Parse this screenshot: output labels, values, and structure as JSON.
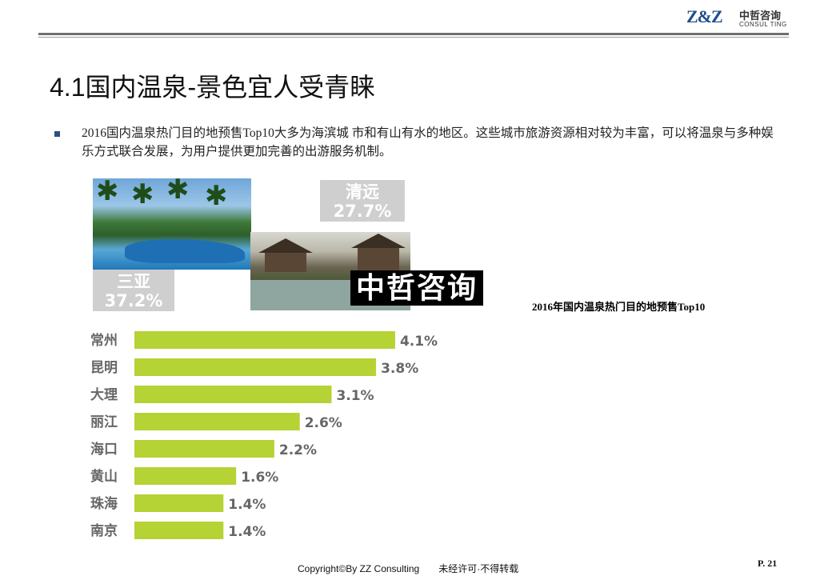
{
  "header": {
    "logo_mark": "Z&Z",
    "logo_cn": "中哲咨询",
    "logo_en": "CONSUL TING"
  },
  "slide": {
    "title": "4.1国内温泉-景色宜人受青睐",
    "bullet": "2016国内温泉热门目的地预售Top10大多为海滨城 市和有山有水的地区。这些城市旅游资源相对较为丰富，可以将温泉与多种娱乐方式联合发展，为用户提供更加完善的出游服务机制。"
  },
  "highlights": {
    "qingyuan": {
      "name": "清远",
      "percent": "27.7%"
    },
    "sanya": {
      "name": "三亚",
      "percent": "37.2%"
    }
  },
  "watermark": "中哲咨询",
  "chart_data": {
    "type": "bar",
    "orientation": "horizontal",
    "title": "2016年国内温泉热门目的地预售Top10",
    "categories": [
      "常州",
      "昆明",
      "大理",
      "丽江",
      "海口",
      "黄山",
      "珠海",
      "南京"
    ],
    "values": [
      4.1,
      3.8,
      3.1,
      2.6,
      2.2,
      1.6,
      1.4,
      1.4
    ],
    "labels": [
      "4.1%",
      "3.8%",
      "3.1%",
      "2.6%",
      "2.2%",
      "1.6%",
      "1.4%",
      "1.4%"
    ],
    "unit": "%",
    "bar_color": "#b5d334",
    "label_color": "#666666",
    "xlabel": "",
    "ylabel": "",
    "grid": false,
    "legend": "none"
  },
  "footer": {
    "copyright": "Copyright©By  ZZ Consulting",
    "notice": "未经许可·不得转载",
    "page": "P. 21"
  }
}
